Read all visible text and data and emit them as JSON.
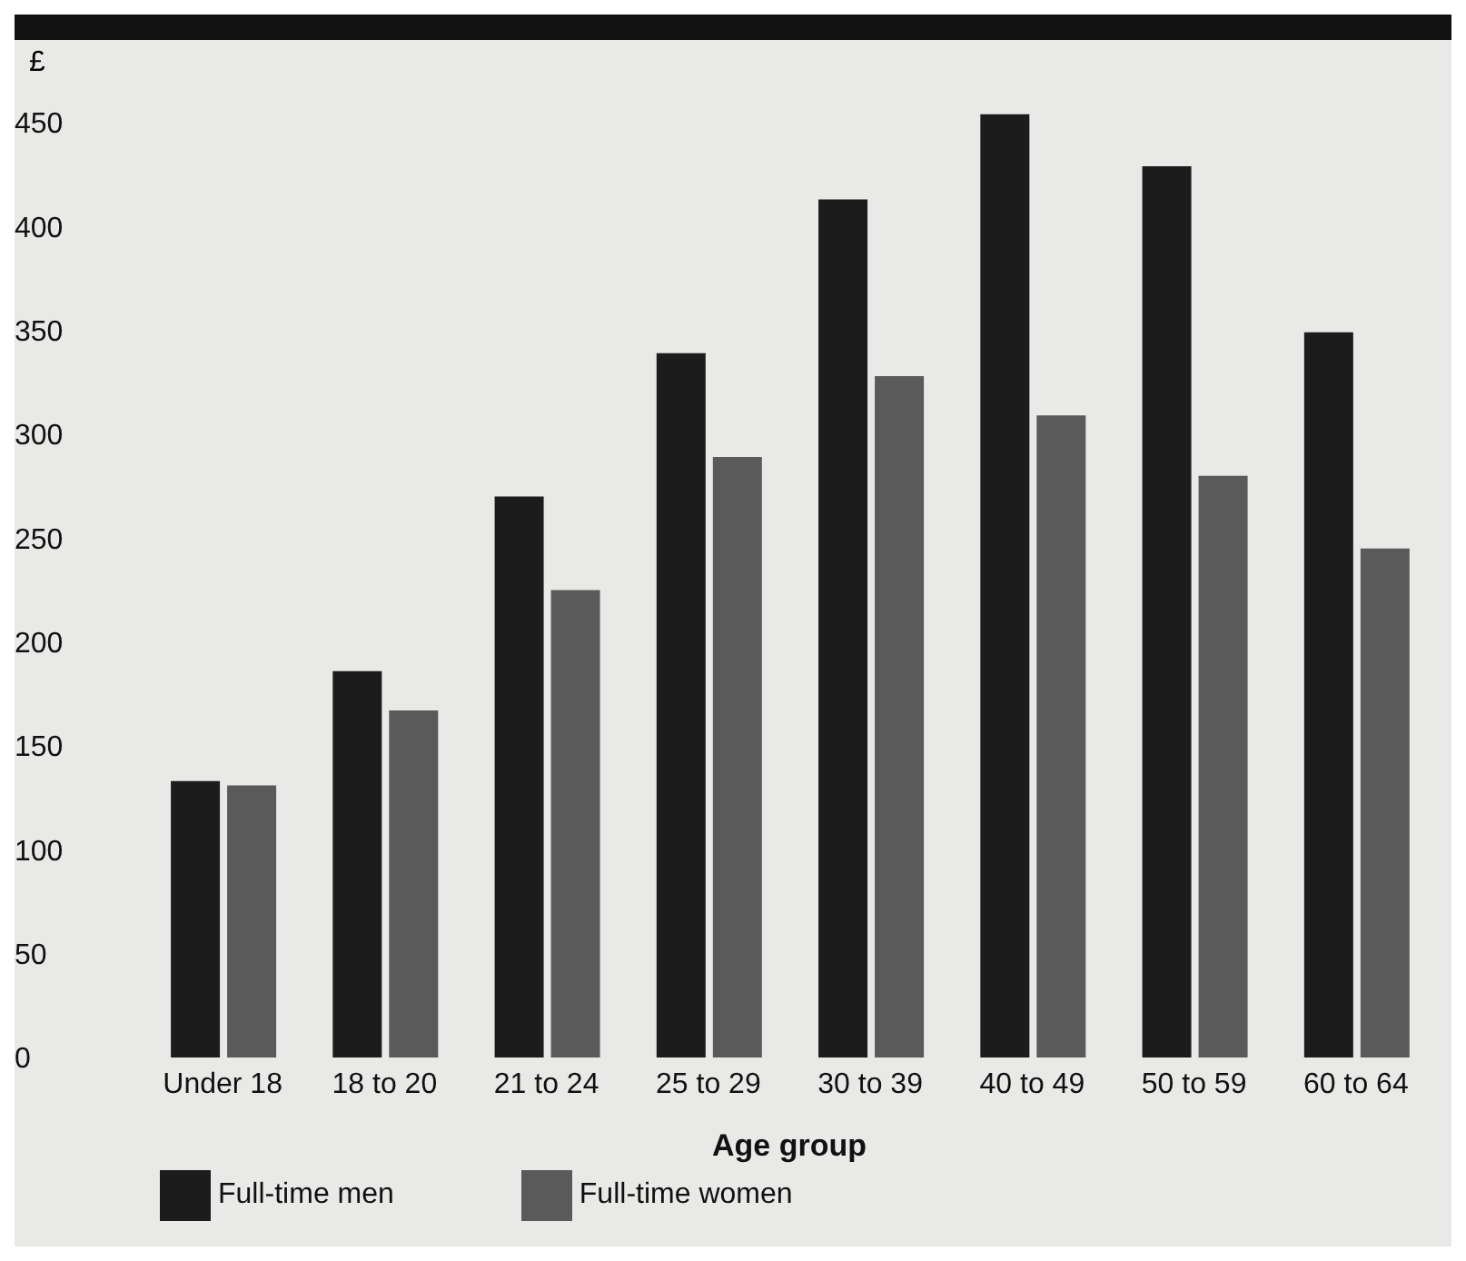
{
  "chart_data": {
    "type": "bar",
    "xlabel": "Age group",
    "ylabel": "£",
    "categories": [
      "Under 18",
      "18 to 20",
      "21 to 24",
      "25 to 29",
      "30 to 39",
      "40 to 49",
      "50 to 59",
      "60 to 64"
    ],
    "series": [
      {
        "name": "Full-time men",
        "color": "#1c1c1c",
        "values": [
          133,
          186,
          270,
          339,
          413,
          454,
          429,
          349
        ]
      },
      {
        "name": "Full-time women",
        "color": "#5a5a5a",
        "values": [
          131,
          167,
          225,
          289,
          328,
          309,
          280,
          245
        ]
      }
    ],
    "ylim": [
      0,
      460
    ],
    "yticks": [
      0,
      50,
      100,
      150,
      200,
      250,
      300,
      350,
      400,
      450
    ],
    "grid": false,
    "legend": "bottom left"
  }
}
